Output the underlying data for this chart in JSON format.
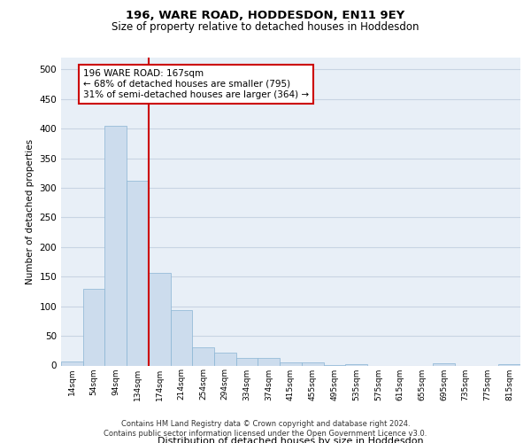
{
  "title": "196, WARE ROAD, HODDESDON, EN11 9EY",
  "subtitle": "Size of property relative to detached houses in Hoddesdon",
  "xlabel": "Distribution of detached houses by size in Hoddesdon",
  "ylabel": "Number of detached properties",
  "footer_line1": "Contains HM Land Registry data © Crown copyright and database right 2024.",
  "footer_line2": "Contains public sector information licensed under the Open Government Licence v3.0.",
  "bar_color": "#ccdced",
  "bar_edge_color": "#89b4d4",
  "grid_color": "#c8d4e3",
  "background_color": "#e8eff7",
  "annotation_box_color": "#ffffff",
  "annotation_border_color": "#cc0000",
  "vline_color": "#cc0000",
  "categories": [
    "14sqm",
    "54sqm",
    "94sqm",
    "134sqm",
    "174sqm",
    "214sqm",
    "254sqm",
    "294sqm",
    "334sqm",
    "374sqm",
    "415sqm",
    "455sqm",
    "495sqm",
    "535sqm",
    "575sqm",
    "615sqm",
    "655sqm",
    "695sqm",
    "735sqm",
    "775sqm",
    "815sqm"
  ],
  "values": [
    6,
    130,
    405,
    312,
    157,
    93,
    30,
    22,
    12,
    12,
    5,
    5,
    1,
    2,
    0,
    0,
    0,
    3,
    0,
    0,
    2
  ],
  "ylim": [
    0,
    520
  ],
  "yticks": [
    0,
    50,
    100,
    150,
    200,
    250,
    300,
    350,
    400,
    450,
    500
  ],
  "annotation_line1": "196 WARE ROAD: 167sqm",
  "annotation_line2": "← 68% of detached houses are smaller (795)",
  "annotation_line3": "31% of semi-detached houses are larger (364) →",
  "vline_x": 3.5
}
